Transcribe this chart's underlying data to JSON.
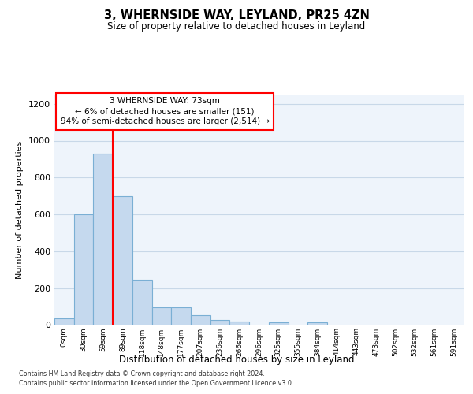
{
  "title": "3, WHERNSIDE WAY, LEYLAND, PR25 4ZN",
  "subtitle": "Size of property relative to detached houses in Leyland",
  "xlabel": "Distribution of detached houses by size in Leyland",
  "ylabel": "Number of detached properties",
  "bar_color": "#c5d9ee",
  "bar_edge_color": "#7aafd4",
  "background_color": "#ffffff",
  "grid_color": "#c8d8e8",
  "bin_labels": [
    "0sqm",
    "30sqm",
    "59sqm",
    "89sqm",
    "118sqm",
    "148sqm",
    "177sqm",
    "207sqm",
    "236sqm",
    "266sqm",
    "296sqm",
    "325sqm",
    "355sqm",
    "384sqm",
    "414sqm",
    "443sqm",
    "473sqm",
    "502sqm",
    "532sqm",
    "561sqm",
    "591sqm"
  ],
  "bar_heights": [
    35,
    600,
    930,
    700,
    245,
    98,
    98,
    52,
    27,
    20,
    0,
    13,
    0,
    13,
    0,
    0,
    0,
    0,
    0,
    0,
    0
  ],
  "ylim": [
    0,
    1250
  ],
  "yticks": [
    0,
    200,
    400,
    600,
    800,
    1000,
    1200
  ],
  "red_line_x": 2.5,
  "annotation_lines": [
    "3 WHERNSIDE WAY: 73sqm",
    "← 6% of detached houses are smaller (151)",
    "94% of semi-detached houses are larger (2,514) →"
  ],
  "footer_line1": "Contains HM Land Registry data © Crown copyright and database right 2024.",
  "footer_line2": "Contains public sector information licensed under the Open Government Licence v3.0."
}
